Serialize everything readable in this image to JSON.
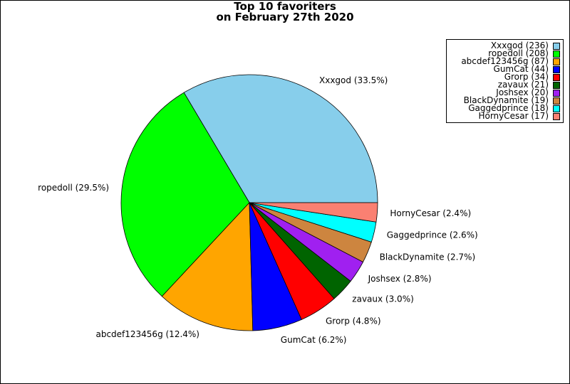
{
  "chart_data": {
    "type": "pie",
    "title_lines": [
      "Top 10 favoriters",
      "on February 27th 2020"
    ],
    "slices": [
      {
        "name": "Xxxgod",
        "value": 236,
        "percent_label": "Xxxgod (33.5%)",
        "legend_label": "Xxxgod (236)",
        "color": "#87CEEB"
      },
      {
        "name": "ropedoll",
        "value": 208,
        "percent_label": "ropedoll (29.5%)",
        "legend_label": "ropedoll (208)",
        "color": "#00FF00"
      },
      {
        "name": "abcdef123456g",
        "value": 87,
        "percent_label": "abcdef123456g (12.4%)",
        "legend_label": "abcdef123456g (87)",
        "color": "#FFA500"
      },
      {
        "name": "GumCat",
        "value": 44,
        "percent_label": "GumCat (6.2%)",
        "legend_label": "GumCat (44)",
        "color": "#0000FF"
      },
      {
        "name": "Grorp",
        "value": 34,
        "percent_label": "Grorp (4.8%)",
        "legend_label": "Grorp (34)",
        "color": "#FF0000"
      },
      {
        "name": "zavaux",
        "value": 21,
        "percent_label": "zavaux (3.0%)",
        "legend_label": "zavaux (21)",
        "color": "#006400"
      },
      {
        "name": "Joshsex",
        "value": 20,
        "percent_label": "Joshsex (2.8%)",
        "legend_label": "Joshsex (20)",
        "color": "#A020F0"
      },
      {
        "name": "BlackDynamite",
        "value": 19,
        "percent_label": "BlackDynamite (2.7%)",
        "legend_label": "BlackDynamite (19)",
        "color": "#CD853F"
      },
      {
        "name": "Gaggedprince",
        "value": 18,
        "percent_label": "Gaggedprince (2.6%)",
        "legend_label": "Gaggedprince (18)",
        "color": "#00FFFF"
      },
      {
        "name": "HornyCesar",
        "value": 17,
        "percent_label": "HornyCesar (2.4%)",
        "legend_label": "HornyCesar (17)",
        "color": "#FA8072"
      }
    ],
    "start_angle_deg": 0,
    "direction": "counterclockwise",
    "legend_position": "top-right"
  }
}
